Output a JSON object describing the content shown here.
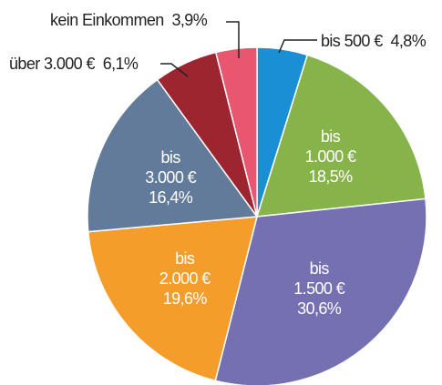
{
  "chart_data": {
    "type": "pie",
    "categories": [
      "bis 500 €",
      "bis\n1.000 €",
      "bis\n1.500 €",
      "bis\n2.000 €",
      "bis\n3.000 €",
      "über 3.000 €",
      "kein Einkommen"
    ],
    "values": [
      4.8,
      18.5,
      30.6,
      19.6,
      16.4,
      6.1,
      3.9
    ],
    "value_labels": [
      "4,8%",
      "18,5%",
      "30,6%",
      "19,6%",
      "16,4%",
      "6,1%",
      "3,9%"
    ],
    "colors": [
      "#1b8fd6",
      "#86b44b",
      "#7470b1",
      "#f59d2b",
      "#637b9a",
      "#9c2530",
      "#e8566f"
    ]
  }
}
